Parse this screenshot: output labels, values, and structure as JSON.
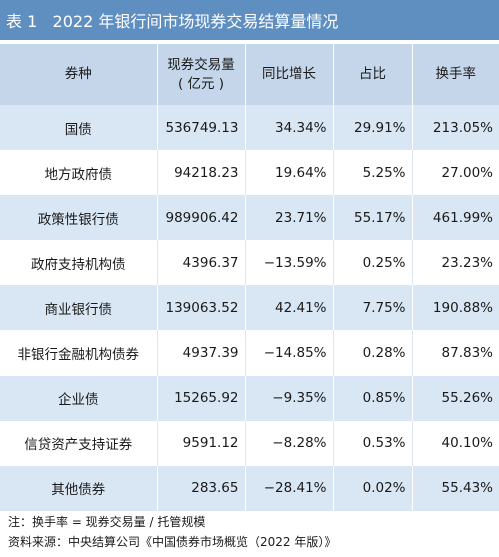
{
  "title": "表 1   2022 年银行间市场现券交易结算量情况",
  "headers": {
    "col1": "券种",
    "col2_line1": "现券交易量",
    "col2_line2": "( 亿元 )",
    "col3": "同比增长",
    "col4": "占比",
    "col5": "换手率"
  },
  "rows": [
    {
      "name": "国债",
      "volume": "536749.13",
      "growth": "34.34%",
      "share": "29.91%",
      "turnover": "213.05%"
    },
    {
      "name": "地方政府债",
      "volume": "94218.23",
      "growth": "19.64%",
      "share": "5.25%",
      "turnover": "27.00%"
    },
    {
      "name": "政策性银行债",
      "volume": "989906.42",
      "growth": "23.71%",
      "share": "55.17%",
      "turnover": "461.99%"
    },
    {
      "name": "政府支持机构债",
      "volume": "4396.37",
      "growth": "−13.59%",
      "share": "0.25%",
      "turnover": "23.23%"
    },
    {
      "name": "商业银行债",
      "volume": "139063.52",
      "growth": "42.41%",
      "share": "7.75%",
      "turnover": "190.88%"
    },
    {
      "name": "非银行金融机构债券",
      "volume": "4937.39",
      "growth": "−14.85%",
      "share": "0.28%",
      "turnover": "87.83%"
    },
    {
      "name": "企业债",
      "volume": "15265.92",
      "growth": "−9.35%",
      "share": "0.85%",
      "turnover": "55.26%"
    },
    {
      "name": "信贷资产支持证券",
      "volume": "9591.12",
      "growth": "−8.28%",
      "share": "0.53%",
      "turnover": "40.10%"
    },
    {
      "name": "其他债券",
      "volume": "283.65",
      "growth": "−28.41%",
      "share": "0.02%",
      "turnover": "55.43%"
    }
  ],
  "notes": {
    "note": "注：换手率 = 现券交易量 / 托管规模",
    "source": "资料来源：中央结算公司《中国债券市场概览（2022 年版）》"
  },
  "colors": {
    "title_bg": "#5f8fc0",
    "header_bg": "#c5d6ea",
    "odd_row_bg": "#d9e6f3",
    "even_row_bg": "#ffffff"
  }
}
